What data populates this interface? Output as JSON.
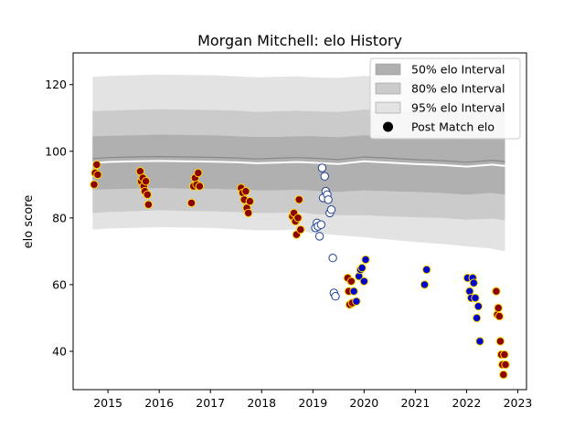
{
  "chart_data": {
    "type": "scatter",
    "title": "Morgan Mitchell: elo History",
    "xlabel": "",
    "ylabel": "elo score",
    "xlim": [
      2014.32,
      2023.17
    ],
    "ylim": [
      28.5,
      129.5
    ],
    "xticks": [
      2015,
      2016,
      2017,
      2018,
      2019,
      2020,
      2021,
      2022,
      2023
    ],
    "xtick_labels": [
      "2015",
      "2016",
      "2017",
      "2018",
      "2019",
      "2020",
      "2021",
      "2022",
      "2023"
    ],
    "yticks": [
      40,
      60,
      80,
      100,
      120
    ],
    "ytick_labels": [
      "40",
      "60",
      "80",
      "100",
      "120"
    ],
    "grid": false,
    "legend_position": "top-right",
    "legend": [
      {
        "label": "50% elo Interval",
        "kind": "patch",
        "color": "#b0b0b0"
      },
      {
        "label": "80% elo Interval",
        "kind": "patch",
        "color": "#cbcbcb"
      },
      {
        "label": "95% elo Interval",
        "kind": "patch",
        "color": "#e3e3e3"
      },
      {
        "label": "Post Match elo",
        "kind": "marker",
        "color": "#000000"
      }
    ],
    "bands": {
      "x": [
        2014.7,
        2015.0,
        2015.5,
        2016.0,
        2016.5,
        2017.0,
        2017.5,
        2017.9,
        2018.3,
        2018.7,
        2019.0,
        2019.5,
        2020.0,
        2020.5,
        2021.0,
        2021.5,
        2022.0,
        2022.5,
        2022.75
      ],
      "mean": [
        96.5,
        96.8,
        97.0,
        97.1,
        97.0,
        96.9,
        96.7,
        96.4,
        96.6,
        96.8,
        96.6,
        96.2,
        97.0,
        96.6,
        96.2,
        95.9,
        95.4,
        96.0,
        95.6
      ],
      "lower50": [
        88.5,
        88.6,
        88.8,
        89.0,
        88.8,
        88.8,
        88.5,
        88.3,
        88.3,
        88.5,
        88.2,
        87.8,
        88.3,
        88.0,
        87.8,
        87.5,
        87.0,
        87.5,
        87.0
      ],
      "upper50": [
        104.5,
        104.6,
        104.8,
        105.0,
        104.9,
        104.8,
        104.5,
        104.3,
        104.3,
        104.5,
        104.5,
        104.2,
        104.8,
        104.5,
        104.3,
        104.2,
        103.8,
        104.2,
        104.0
      ],
      "lower80": [
        81.5,
        81.8,
        82.0,
        82.3,
        82.1,
        82.0,
        81.8,
        81.5,
        81.5,
        81.8,
        81.2,
        80.8,
        80.8,
        80.5,
        80.2,
        80.0,
        79.5,
        79.8,
        79.3
      ],
      "upper80": [
        112.0,
        112.2,
        112.4,
        112.6,
        112.5,
        112.4,
        112.2,
        111.8,
        112.0,
        112.2,
        112.0,
        111.8,
        112.5,
        112.2,
        112.0,
        111.8,
        111.3,
        111.8,
        111.5
      ],
      "lower95": [
        76.5,
        76.8,
        77.0,
        77.3,
        77.1,
        77.0,
        76.6,
        76.3,
        76.3,
        76.5,
        75.5,
        74.8,
        74.2,
        73.5,
        72.8,
        72.2,
        71.5,
        70.8,
        70.0
      ],
      "upper95": [
        122.3,
        122.6,
        122.8,
        123.0,
        122.9,
        122.8,
        122.5,
        122.2,
        122.3,
        122.5,
        122.2,
        122.0,
        122.6,
        122.3,
        122.1,
        121.9,
        121.5,
        121.8,
        121.5
      ]
    },
    "series": [
      {
        "marker_fill": "#8b0000",
        "marker_edge": "#ffd700",
        "points": [
          [
            2014.73,
            90
          ],
          [
            2014.75,
            93.5
          ],
          [
            2014.78,
            96
          ],
          [
            2014.8,
            93
          ],
          [
            2015.63,
            94
          ],
          [
            2015.65,
            91
          ],
          [
            2015.68,
            92
          ],
          [
            2015.7,
            89.5
          ],
          [
            2015.72,
            88
          ],
          [
            2015.74,
            91
          ],
          [
            2015.77,
            87
          ],
          [
            2015.79,
            84
          ],
          [
            2016.63,
            84.5
          ],
          [
            2016.67,
            89.5
          ],
          [
            2016.7,
            92
          ],
          [
            2016.73,
            90
          ],
          [
            2016.76,
            93.5
          ],
          [
            2016.79,
            89.5
          ],
          [
            2017.6,
            89
          ],
          [
            2017.63,
            87.5
          ],
          [
            2017.66,
            85.5
          ],
          [
            2017.69,
            88
          ],
          [
            2017.71,
            83
          ],
          [
            2017.74,
            81.5
          ],
          [
            2017.77,
            85
          ],
          [
            2018.6,
            80.5
          ],
          [
            2018.63,
            81.5
          ],
          [
            2018.66,
            79
          ],
          [
            2018.68,
            75
          ],
          [
            2018.71,
            80
          ],
          [
            2018.73,
            85.5
          ],
          [
            2018.76,
            76.5
          ],
          [
            2019.68,
            62
          ],
          [
            2019.7,
            58
          ],
          [
            2019.72,
            54
          ],
          [
            2019.75,
            61
          ],
          [
            2019.77,
            54.5
          ],
          [
            2022.58,
            58
          ],
          [
            2022.6,
            51
          ],
          [
            2022.62,
            53
          ],
          [
            2022.64,
            50.5
          ],
          [
            2022.66,
            43
          ],
          [
            2022.68,
            39
          ],
          [
            2022.7,
            36
          ],
          [
            2022.72,
            33
          ],
          [
            2022.74,
            39
          ],
          [
            2022.76,
            36
          ]
        ]
      },
      {
        "marker_fill": "#ffffff",
        "marker_edge": "#1f3f8f",
        "points": [
          [
            2019.05,
            77
          ],
          [
            2019.08,
            78.5
          ],
          [
            2019.1,
            77.5
          ],
          [
            2019.13,
            74.5
          ],
          [
            2019.16,
            78
          ],
          [
            2019.18,
            95
          ],
          [
            2019.2,
            86
          ],
          [
            2019.23,
            92.5
          ],
          [
            2019.25,
            88
          ],
          [
            2019.28,
            87
          ],
          [
            2019.3,
            85.5
          ],
          [
            2019.33,
            81.5
          ],
          [
            2019.36,
            82.5
          ],
          [
            2019.39,
            68
          ],
          [
            2019.41,
            57.5
          ],
          [
            2019.44,
            56.5
          ]
        ]
      },
      {
        "marker_fill": "#0000cd",
        "marker_edge": "#ffd700",
        "points": [
          [
            2019.8,
            58
          ],
          [
            2019.85,
            55
          ],
          [
            2019.9,
            62.5
          ],
          [
            2019.93,
            64.5
          ],
          [
            2019.96,
            65
          ],
          [
            2020.0,
            61
          ],
          [
            2020.03,
            67.5
          ],
          [
            2021.18,
            60
          ],
          [
            2021.22,
            64.5
          ],
          [
            2022.02,
            62
          ],
          [
            2022.06,
            58
          ],
          [
            2022.09,
            56
          ],
          [
            2022.12,
            62
          ],
          [
            2022.14,
            60.5
          ],
          [
            2022.17,
            56
          ],
          [
            2022.2,
            50
          ],
          [
            2022.23,
            53.5
          ],
          [
            2022.26,
            43
          ]
        ]
      }
    ]
  }
}
